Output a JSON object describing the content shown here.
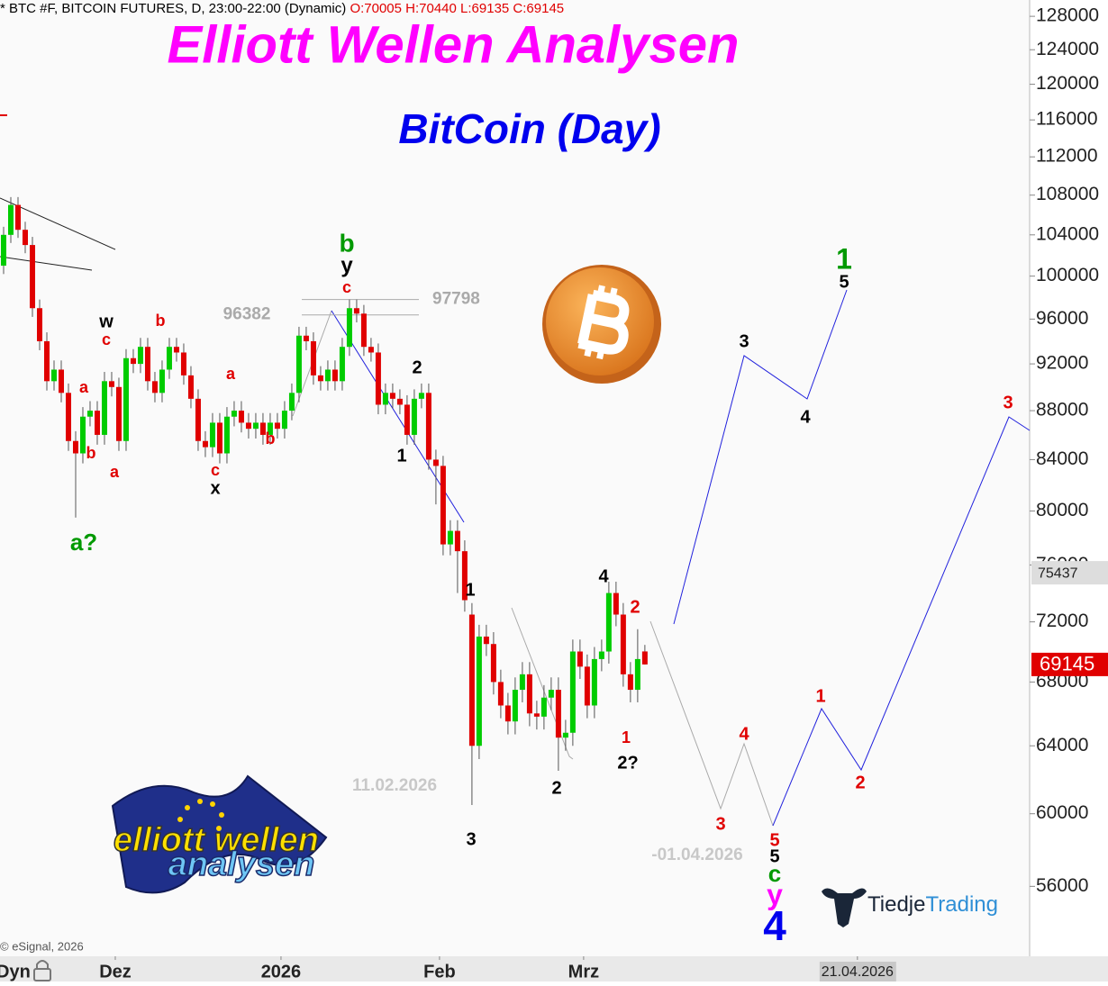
{
  "header": {
    "symbol": "* BTC #F, BITCOIN FUTURES, D, 23:00-22:00 (Dynamic)",
    "ohlc": "O:70005 H:70440 L:69135 C:69145"
  },
  "chart_data": {
    "type": "candlestick",
    "title": "Elliott Wellen Analysen",
    "subtitle": "BitCoin (Day)",
    "open": [
      101000,
      104000,
      107000,
      104500,
      103000,
      97000,
      94000,
      90500,
      91500,
      89500,
      85500,
      84500,
      87500,
      88000,
      86000,
      90500,
      90000,
      85500,
      92500,
      92000,
      93500,
      90500,
      89500,
      91500,
      93500,
      93000,
      91000,
      89000,
      85500,
      85000,
      87000,
      84500,
      87500,
      88000,
      87000,
      86500,
      87000,
      86000,
      87000,
      86500,
      88000,
      89500,
      94500,
      94000,
      91000,
      90500,
      91500,
      90500,
      93500,
      97000,
      96500,
      93500,
      93000,
      88500,
      89500,
      89000,
      88500,
      86000,
      89000,
      89500,
      84000,
      83500,
      77500,
      78500,
      77000,
      72500,
      64000,
      71000,
      70500,
      68000,
      66500,
      65500,
      67500,
      68500,
      66000,
      65800,
      67000,
      67500,
      64500,
      64800,
      70000,
      69000,
      66500,
      69500,
      70000,
      74000,
      72500,
      68500,
      67500,
      70005
    ],
    "high": [
      104800,
      107800,
      107800,
      105300,
      103800,
      97800,
      94800,
      92300,
      92300,
      90300,
      86300,
      88300,
      88800,
      88800,
      91300,
      91300,
      90800,
      93300,
      93300,
      94300,
      94300,
      91300,
      92300,
      94300,
      94300,
      93800,
      91800,
      89800,
      86300,
      87800,
      87800,
      88300,
      88800,
      88800,
      87800,
      87800,
      87800,
      87800,
      87800,
      88800,
      90300,
      95300,
      95300,
      94800,
      91800,
      92300,
      92300,
      94300,
      97800,
      97800,
      97300,
      94300,
      93800,
      90300,
      90300,
      89800,
      89300,
      89800,
      90300,
      90300,
      84800,
      84300,
      79300,
      79300,
      77800,
      73300,
      71800,
      71800,
      71300,
      68800,
      67300,
      68300,
      69300,
      69300,
      66800,
      67800,
      68300,
      68300,
      65600,
      70800,
      70800,
      69800,
      70300,
      70800,
      74800,
      74800,
      73300,
      69300,
      71500,
      70440
    ],
    "low": [
      100200,
      103200,
      103700,
      102200,
      96200,
      93200,
      89700,
      89700,
      88700,
      84700,
      79500,
      83700,
      86700,
      85200,
      85200,
      89200,
      84700,
      84700,
      91200,
      91200,
      89700,
      88700,
      88700,
      90700,
      92200,
      90200,
      88200,
      84700,
      84200,
      84200,
      83700,
      83700,
      86700,
      86200,
      85700,
      85700,
      85200,
      85200,
      85700,
      85700,
      87200,
      88700,
      93200,
      90200,
      89700,
      89700,
      89700,
      89700,
      92700,
      95700,
      92700,
      92200,
      87700,
      87700,
      88200,
      87700,
      85200,
      85200,
      88200,
      83200,
      80500,
      76700,
      76700,
      74000,
      72700,
      60500,
      63200,
      69700,
      67200,
      65700,
      64700,
      64700,
      66700,
      65200,
      65000,
      65000,
      66200,
      62500,
      63700,
      64000,
      68200,
      65700,
      65700,
      68700,
      69200,
      71700,
      67700,
      66700,
      66700,
      69135
    ],
    "close": [
      104000,
      107000,
      104500,
      103000,
      97000,
      94000,
      90500,
      91500,
      89500,
      85500,
      84500,
      87500,
      88000,
      86000,
      90500,
      90000,
      85500,
      92500,
      92000,
      93500,
      90500,
      89500,
      91500,
      93500,
      93000,
      91000,
      89000,
      85500,
      85000,
      87000,
      84500,
      87500,
      88000,
      87000,
      86500,
      87000,
      86000,
      87000,
      86500,
      88000,
      89500,
      94500,
      94000,
      91000,
      90500,
      91500,
      90500,
      93500,
      97000,
      96500,
      93500,
      93000,
      88500,
      89500,
      89000,
      88500,
      86000,
      89000,
      89500,
      84000,
      83500,
      77500,
      78500,
      77000,
      73500,
      64000,
      71000,
      70500,
      68000,
      66500,
      65500,
      67500,
      68500,
      66000,
      65800,
      67000,
      67500,
      64500,
      64800,
      70000,
      69000,
      66500,
      69500,
      70000,
      74000,
      72500,
      68500,
      67500,
      69500,
      69145
    ],
    "up_color": "#00cc00",
    "down_color": "#e00000",
    "xlim": [
      -0.5,
      142.4
    ],
    "xticks": [
      {
        "value": 15.5,
        "label": "Dez"
      },
      {
        "value": 38.5,
        "label": "2026"
      },
      {
        "value": 60.5,
        "label": "Feb"
      },
      {
        "value": 80.5,
        "label": "Mrz"
      },
      {
        "value": 118.5,
        "label": "21.04.2026"
      }
    ],
    "ylim": [
      52400,
      130000
    ],
    "log_scale": true,
    "yticks": [
      128000,
      124000,
      120000,
      116000,
      112000,
      108000,
      104000,
      100000,
      96000,
      92000,
      88000,
      84000,
      80000,
      76000,
      72000,
      68000,
      64000,
      60000,
      56000
    ],
    "levels": [
      96382,
      97798
    ],
    "price_markers": [
      {
        "value": 75437,
        "color": "#dddddd"
      },
      {
        "value": 69145,
        "color": "#e00000"
      }
    ]
  },
  "annotations": [
    {
      "text": "b",
      "color": "#009900"
    },
    {
      "text": "y",
      "color": "#000000"
    },
    {
      "text": "c",
      "color": "#e00000"
    },
    {
      "text": "w",
      "color": "#000000"
    },
    {
      "text": "c",
      "color": "#e00000"
    },
    {
      "text": "b",
      "color": "#e00000"
    },
    {
      "text": "a",
      "color": "#e00000"
    },
    {
      "text": "b",
      "color": "#e00000"
    },
    {
      "text": "a",
      "color": "#e00000"
    },
    {
      "text": "a",
      "color": "#e00000"
    },
    {
      "text": "b",
      "color": "#e00000"
    },
    {
      "text": "c",
      "color": "#e00000"
    },
    {
      "text": "x",
      "color": "#000000"
    },
    {
      "text": "a?",
      "color": "#009900"
    },
    {
      "text": "2",
      "color": "#000000"
    },
    {
      "text": "1",
      "color": "#000000"
    },
    {
      "text": "1",
      "color": "#000000"
    },
    {
      "text": "3",
      "color": "#000000"
    },
    {
      "text": "4",
      "color": "#000000"
    },
    {
      "text": "2",
      "color": "#e00000"
    },
    {
      "text": "1",
      "color": "#e00000"
    },
    {
      "text": "2?",
      "color": "#000000"
    },
    {
      "text": "2",
      "color": "#000000"
    },
    {
      "text": "3",
      "color": "#000000"
    },
    {
      "text": "4",
      "color": "#000000"
    },
    {
      "text": "1",
      "color": "#009900"
    },
    {
      "text": "5",
      "color": "#000000"
    },
    {
      "text": "3",
      "color": "#e00000"
    },
    {
      "text": "3",
      "color": "#e00000"
    },
    {
      "text": "4",
      "color": "#e00000"
    },
    {
      "text": "5",
      "color": "#e00000"
    },
    {
      "text": "5",
      "color": "#000000"
    },
    {
      "text": "c",
      "color": "#009900"
    },
    {
      "text": "y",
      "color": "#ff00ff"
    },
    {
      "text": "4",
      "color": "#0000ee"
    },
    {
      "text": "1",
      "color": "#e00000"
    },
    {
      "text": "2",
      "color": "#e00000"
    }
  ],
  "date_notes": [
    "11.02.2026",
    "-01.04.2026"
  ],
  "footer": {
    "copyright": "© eSignal, 2026",
    "mode": "Dyn"
  },
  "logos": {
    "ewa_line1": "elliott wellen",
    "ewa_line2": "analysen",
    "brand_part1": "Tiedje",
    "brand_part2": "Trading"
  }
}
